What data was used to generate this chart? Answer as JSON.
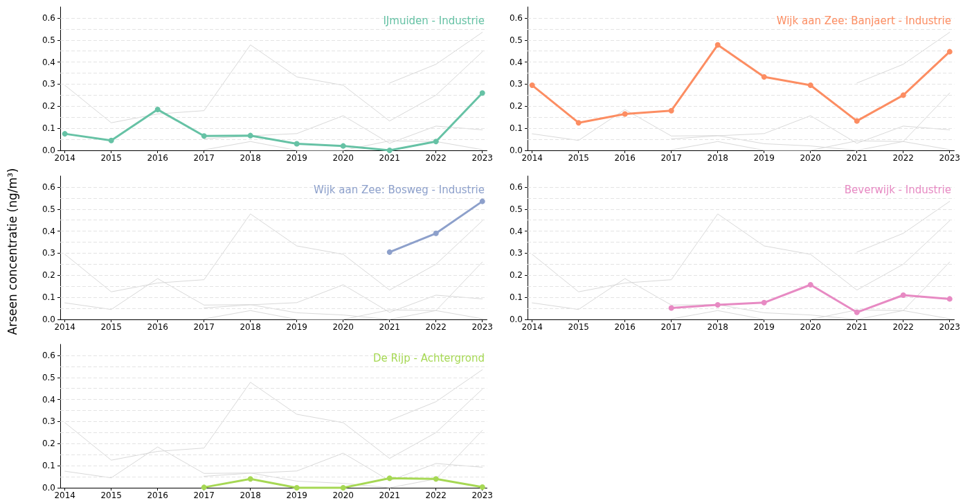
{
  "chart_data": [
    {
      "type": "line",
      "ylabel": "Arseen concentratie (ng/m³)",
      "x": [
        2014,
        2015,
        2016,
        2017,
        2018,
        2019,
        2020,
        2021,
        2022,
        2023
      ],
      "xlim": [
        2013.9,
        2023.1
      ],
      "xticks": [
        2014,
        2015,
        2016,
        2017,
        2018,
        2019,
        2020,
        2021,
        2022,
        2023
      ],
      "ylim": [
        0,
        0.65
      ],
      "yticks": [
        {
          "value": 0,
          "label": "0.0"
        },
        {
          "value": 0.05,
          "label": null
        },
        0.1,
        {
          "value": 0.15,
          "label": null
        },
        0.2,
        {
          "value": 0.25,
          "label": null
        },
        0.3,
        {
          "value": 0.35,
          "label": null
        },
        0.4,
        {
          "value": 0.45,
          "label": null
        },
        0.5,
        {
          "value": 0.55,
          "label": null
        },
        0.6
      ],
      "grid": "y",
      "line_style": "solid",
      "marker": "circle",
      "legend": false,
      "series": [
        {
          "color": "#d9d9d9",
          "marker": "none",
          "values": [
            0.295,
            0.125,
            0.165,
            0.18,
            0.478,
            0.333,
            0.295,
            0.133,
            0.25,
            0.447
          ]
        },
        {
          "color": "#d9d9d9",
          "marker": "none",
          "values": [
            null,
            null,
            null,
            null,
            null,
            null,
            null,
            0.305,
            0.39,
            0.535
          ]
        },
        {
          "color": "#d9d9d9",
          "marker": "none",
          "values": [
            null,
            null,
            null,
            0.052,
            0.066,
            0.076,
            0.157,
            0.032,
            0.11,
            0.093
          ]
        },
        {
          "color": "#d9d9d9",
          "marker": "none",
          "values": [
            null,
            null,
            null,
            0.002,
            0.04,
            0.0,
            0.0,
            0.043,
            0.04,
            0.003
          ]
        },
        {
          "name": "IJmuiden - Industrie",
          "color": "#66c2a5",
          "values": [
            0.075,
            0.045,
            0.185,
            0.065,
            0.067,
            0.03,
            0.02,
            0.0,
            0.04,
            0.26
          ]
        }
      ]
    },
    {
      "type": "line",
      "x": [
        2014,
        2015,
        2016,
        2017,
        2018,
        2019,
        2020,
        2021,
        2022,
        2023
      ],
      "xlim": [
        2013.9,
        2023.1
      ],
      "xticks": [
        2014,
        2015,
        2016,
        2017,
        2018,
        2019,
        2020,
        2021,
        2022,
        2023
      ],
      "ylim": [
        0,
        0.65
      ],
      "yticks": [
        {
          "value": 0,
          "label": "0.0"
        },
        {
          "value": 0.05,
          "label": null
        },
        0.1,
        {
          "value": 0.15,
          "label": null
        },
        0.2,
        {
          "value": 0.25,
          "label": null
        },
        0.3,
        {
          "value": 0.35,
          "label": null
        },
        0.4,
        {
          "value": 0.45,
          "label": null
        },
        0.5,
        {
          "value": 0.55,
          "label": null
        },
        0.6
      ],
      "grid": "y",
      "line_style": "solid",
      "marker": "circle",
      "legend": false,
      "series": [
        {
          "color": "#d9d9d9",
          "marker": "none",
          "values": [
            0.075,
            0.045,
            0.185,
            0.065,
            0.067,
            0.03,
            0.02,
            0.0,
            0.04,
            0.26
          ]
        },
        {
          "color": "#d9d9d9",
          "marker": "none",
          "values": [
            null,
            null,
            null,
            null,
            null,
            null,
            null,
            0.305,
            0.39,
            0.535
          ]
        },
        {
          "color": "#d9d9d9",
          "marker": "none",
          "values": [
            null,
            null,
            null,
            0.052,
            0.066,
            0.076,
            0.157,
            0.032,
            0.11,
            0.093
          ]
        },
        {
          "color": "#d9d9d9",
          "marker": "none",
          "values": [
            null,
            null,
            null,
            0.002,
            0.04,
            0.0,
            0.0,
            0.043,
            0.04,
            0.003
          ]
        },
        {
          "name": "Wijk aan Zee: Banjaert - Industrie",
          "color": "#fc8d62",
          "values": [
            0.295,
            0.125,
            0.165,
            0.18,
            0.478,
            0.333,
            0.295,
            0.133,
            0.25,
            0.447
          ]
        }
      ]
    },
    {
      "type": "line",
      "x": [
        2014,
        2015,
        2016,
        2017,
        2018,
        2019,
        2020,
        2021,
        2022,
        2023
      ],
      "xlim": [
        2013.9,
        2023.1
      ],
      "xticks": [
        2014,
        2015,
        2016,
        2017,
        2018,
        2019,
        2020,
        2021,
        2022,
        2023
      ],
      "ylim": [
        0,
        0.65
      ],
      "yticks": [
        {
          "value": 0,
          "label": "0.0"
        },
        {
          "value": 0.05,
          "label": null
        },
        0.1,
        {
          "value": 0.15,
          "label": null
        },
        0.2,
        {
          "value": 0.25,
          "label": null
        },
        0.3,
        {
          "value": 0.35,
          "label": null
        },
        0.4,
        {
          "value": 0.45,
          "label": null
        },
        0.5,
        {
          "value": 0.55,
          "label": null
        },
        0.6
      ],
      "grid": "y",
      "line_style": "solid",
      "marker": "circle",
      "legend": false,
      "series": [
        {
          "color": "#d9d9d9",
          "marker": "none",
          "values": [
            0.075,
            0.045,
            0.185,
            0.065,
            0.067,
            0.03,
            0.02,
            0.0,
            0.04,
            0.26
          ]
        },
        {
          "color": "#d9d9d9",
          "marker": "none",
          "values": [
            0.295,
            0.125,
            0.165,
            0.18,
            0.478,
            0.333,
            0.295,
            0.133,
            0.25,
            0.447
          ]
        },
        {
          "color": "#d9d9d9",
          "marker": "none",
          "values": [
            null,
            null,
            null,
            0.052,
            0.066,
            0.076,
            0.157,
            0.032,
            0.11,
            0.093
          ]
        },
        {
          "color": "#d9d9d9",
          "marker": "none",
          "values": [
            null,
            null,
            null,
            0.002,
            0.04,
            0.0,
            0.0,
            0.043,
            0.04,
            0.003
          ]
        },
        {
          "name": "Wijk aan Zee: Bosweg - Industrie",
          "color": "#8da0cb",
          "values": [
            null,
            null,
            null,
            null,
            null,
            null,
            null,
            0.305,
            0.39,
            0.535
          ]
        }
      ]
    },
    {
      "type": "line",
      "x": [
        2014,
        2015,
        2016,
        2017,
        2018,
        2019,
        2020,
        2021,
        2022,
        2023
      ],
      "xlim": [
        2013.9,
        2023.1
      ],
      "xticks": [
        2014,
        2015,
        2016,
        2017,
        2018,
        2019,
        2020,
        2021,
        2022,
        2023
      ],
      "ylim": [
        0,
        0.65
      ],
      "yticks": [
        {
          "value": 0,
          "label": "0.0"
        },
        {
          "value": 0.05,
          "label": null
        },
        0.1,
        {
          "value": 0.15,
          "label": null
        },
        0.2,
        {
          "value": 0.25,
          "label": null
        },
        0.3,
        {
          "value": 0.35,
          "label": null
        },
        0.4,
        {
          "value": 0.45,
          "label": null
        },
        0.5,
        {
          "value": 0.55,
          "label": null
        },
        0.6
      ],
      "grid": "y",
      "line_style": "solid",
      "marker": "circle",
      "legend": false,
      "series": [
        {
          "color": "#d9d9d9",
          "marker": "none",
          "values": [
            0.075,
            0.045,
            0.185,
            0.065,
            0.067,
            0.03,
            0.02,
            0.0,
            0.04,
            0.26
          ]
        },
        {
          "color": "#d9d9d9",
          "marker": "none",
          "values": [
            0.295,
            0.125,
            0.165,
            0.18,
            0.478,
            0.333,
            0.295,
            0.133,
            0.25,
            0.447
          ]
        },
        {
          "color": "#d9d9d9",
          "marker": "none",
          "values": [
            null,
            null,
            null,
            null,
            null,
            null,
            null,
            0.305,
            0.39,
            0.535
          ]
        },
        {
          "color": "#d9d9d9",
          "marker": "none",
          "values": [
            null,
            null,
            null,
            0.002,
            0.04,
            0.0,
            0.0,
            0.043,
            0.04,
            0.003
          ]
        },
        {
          "name": "Beverwijk - Industrie",
          "color": "#e78ac3",
          "values": [
            null,
            null,
            null,
            0.052,
            0.066,
            0.076,
            0.157,
            0.032,
            0.11,
            0.093
          ]
        }
      ]
    },
    {
      "type": "line",
      "x": [
        2014,
        2015,
        2016,
        2017,
        2018,
        2019,
        2020,
        2021,
        2022,
        2023
      ],
      "xlim": [
        2013.9,
        2023.1
      ],
      "xticks": [
        2014,
        2015,
        2016,
        2017,
        2018,
        2019,
        2020,
        2021,
        2022,
        2023
      ],
      "ylim": [
        0,
        0.65
      ],
      "yticks": [
        {
          "value": 0,
          "label": "0.0"
        },
        {
          "value": 0.05,
          "label": null
        },
        0.1,
        {
          "value": 0.15,
          "label": null
        },
        0.2,
        {
          "value": 0.25,
          "label": null
        },
        0.3,
        {
          "value": 0.35,
          "label": null
        },
        0.4,
        {
          "value": 0.45,
          "label": null
        },
        0.5,
        {
          "value": 0.55,
          "label": null
        },
        0.6
      ],
      "grid": "y",
      "line_style": "solid",
      "marker": "circle",
      "legend": false,
      "series": [
        {
          "color": "#d9d9d9",
          "marker": "none",
          "values": [
            0.075,
            0.045,
            0.185,
            0.065,
            0.067,
            0.03,
            0.02,
            0.0,
            0.04,
            0.26
          ]
        },
        {
          "color": "#d9d9d9",
          "marker": "none",
          "values": [
            0.295,
            0.125,
            0.165,
            0.18,
            0.478,
            0.333,
            0.295,
            0.133,
            0.25,
            0.447
          ]
        },
        {
          "color": "#d9d9d9",
          "marker": "none",
          "values": [
            null,
            null,
            null,
            null,
            null,
            null,
            null,
            0.305,
            0.39,
            0.535
          ]
        },
        {
          "color": "#d9d9d9",
          "marker": "none",
          "values": [
            null,
            null,
            null,
            0.052,
            0.066,
            0.076,
            0.157,
            0.032,
            0.11,
            0.093
          ]
        },
        {
          "name": "De Rijp - Achtergrond",
          "color": "#a6d854",
          "values": [
            null,
            null,
            null,
            0.002,
            0.04,
            0.0,
            0.0,
            0.043,
            0.04,
            0.003
          ]
        }
      ]
    }
  ]
}
